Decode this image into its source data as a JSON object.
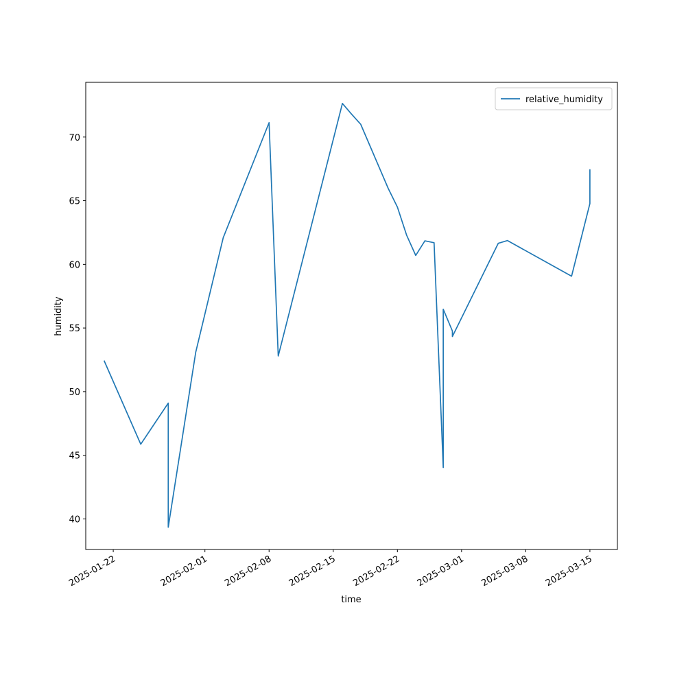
{
  "chart_data": {
    "type": "line",
    "xlabel": "time",
    "ylabel": "humidity",
    "x": [
      "2025-01-21",
      "2025-01-25",
      "2025-01-28",
      "2025-01-28",
      "2025-01-31",
      "2025-02-03",
      "2025-02-08",
      "2025-02-09",
      "2025-02-16",
      "2025-02-17",
      "2025-02-18",
      "2025-02-21",
      "2025-02-22",
      "2025-02-23",
      "2025-02-24",
      "2025-02-25",
      "2025-02-26",
      "2025-02-27",
      "2025-02-27",
      "2025-02-28",
      "2025-02-28",
      "2025-03-05",
      "2025-03-06",
      "2025-03-13",
      "2025-03-15",
      "2025-03-15"
    ],
    "series": [
      {
        "name": "relative_humidity",
        "color": "#1f77b4",
        "values": [
          52.44,
          45.87,
          49.1,
          39.35,
          53.1,
          62.1,
          71.13,
          52.8,
          72.64,
          71.8,
          71.0,
          65.96,
          64.5,
          62.3,
          60.7,
          61.85,
          61.7,
          44.04,
          56.48,
          54.76,
          54.33,
          61.65,
          61.87,
          59.07,
          64.78,
          67.47
        ]
      }
    ],
    "xlim": [
      "2025-01-19",
      "2025-03-18"
    ],
    "xticks": [
      "2025-01-22",
      "2025-02-01",
      "2025-02-08",
      "2025-02-15",
      "2025-02-22",
      "2025-03-01",
      "2025-03-08",
      "2025-03-15"
    ],
    "ylim": [
      37.6,
      74.3
    ],
    "yticks": [
      40,
      45,
      50,
      55,
      60,
      65,
      70
    ],
    "legend": "upper right"
  }
}
